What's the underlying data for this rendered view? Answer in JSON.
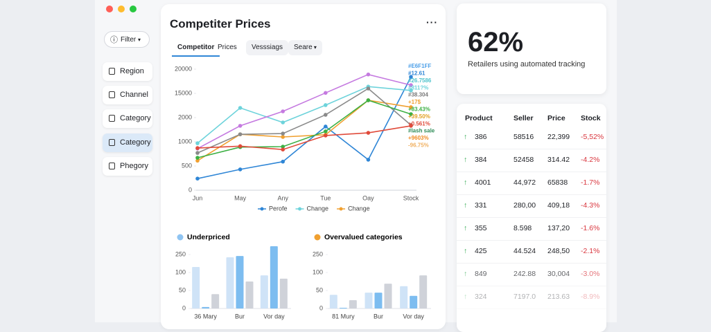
{
  "sidebar": {
    "filter": "Filter",
    "items": [
      "Region",
      "Channel",
      "Category",
      "Category",
      "Phegory"
    ],
    "active_item": 3
  },
  "main": {
    "title": "Competiter Prices",
    "tabs": [
      "Competitor",
      "Prices",
      "Vesssiags",
      "Seare"
    ],
    "active_tab": 0,
    "line_chart": {
      "type": "line",
      "categories": [
        "Jun",
        "May",
        "Any",
        "Tue",
        "Oay",
        "Stock"
      ],
      "ylim": [
        0,
        20000
      ],
      "yticks": [
        0,
        500,
        1000,
        2000,
        15000,
        20000
      ],
      "legend": "bottom",
      "series": [
        {
          "name": "Perofe",
          "color": "#2f86d6",
          "values": [
            240,
            430,
            590,
            1630,
            630,
            18400
          ]
        },
        {
          "name": "Change",
          "color": "#6dd3db",
          "values": [
            970,
            7200,
            1800,
            8700,
            16400,
            15600
          ]
        },
        {
          "name": "Change",
          "color": "#f0a030",
          "values": [
            610,
            1310,
            1200,
            1290,
            11300,
            7600
          ]
        },
        {
          "color": "#c57ae0",
          "values": [
            860,
            1660,
            5340,
            15100,
            18900,
            16700
          ]
        },
        {
          "color": "#8a8a8a",
          "values": [
            770,
            1310,
            1340,
            3500,
            16000,
            1690
          ]
        },
        {
          "color": "#3cb043",
          "values": [
            670,
            890,
            900,
            1430,
            11300,
            3860
          ]
        },
        {
          "color": "#e04a3a",
          "values": [
            870,
            910,
            840,
            1260,
            1370,
            1660
          ]
        }
      ],
      "annotations": [
        {
          "text": "#E6F1FF",
          "color": "#4a9ee8"
        },
        {
          "text": "#12.61",
          "color": "#2f86d6"
        },
        {
          "text": "#26.7586",
          "color": "#4fc3cc"
        },
        {
          "text": "#811?%",
          "color": "#6dd3db"
        },
        {
          "text": "#38.304",
          "color": "#7a7a7a"
        },
        {
          "text": "+17$",
          "color": "#f0a030"
        },
        {
          "text": "+83.43%",
          "color": "#3cb043"
        },
        {
          "text": "+39.50%",
          "color": "#e0a020"
        },
        {
          "text": "+0.561%",
          "color": "#e04a3a"
        },
        {
          "text": "#lash sale",
          "color": "#2e8b57"
        },
        {
          "text": "+9603%",
          "color": "#f08a20"
        },
        {
          "text": "-96.75%",
          "color": "#f0b060"
        }
      ]
    },
    "bar_charts": [
      {
        "type": "bar",
        "title": "Underpriced",
        "title_dot_color": "#8fc4f2",
        "categories": [
          "36 Mary",
          "Bur",
          "Vor day"
        ],
        "ylim": [
          0,
          400
        ],
        "yticks": [
          0,
          50,
          100,
          250
        ],
        "series": [
          {
            "color": "#cfe3f7",
            "values": [
              146,
              227,
              92
            ]
          },
          {
            "color": "#7dbdf0",
            "values": [
              4,
              238,
              319
            ]
          },
          {
            "color": "#cfd2d9",
            "values": [
              40,
              75,
              83
            ]
          }
        ]
      },
      {
        "type": "bar",
        "title": "Overvalued categories",
        "title_dot_color": "#f0a030",
        "categories": [
          "81 Mury",
          "Bur",
          "Vor day"
        ],
        "ylim": [
          0,
          400
        ],
        "yticks": [
          0,
          50,
          100,
          250
        ],
        "series": [
          {
            "color": "#cfe3f7",
            "values": [
              38,
              44,
              62
            ]
          },
          {
            "color": "#7dbdf0",
            "values": [
              2,
              44,
              35
            ]
          },
          {
            "color": "#cfd2d9",
            "values": [
              23,
              69,
              92
            ]
          }
        ]
      }
    ]
  },
  "kpi": {
    "value": "62%",
    "label": "Retailers using automated tracking"
  },
  "table": {
    "columns": [
      "Product",
      "Seller",
      "Price",
      "Stock"
    ],
    "rows": [
      [
        "386",
        "58516",
        "22,399",
        "-5,52%"
      ],
      [
        "384",
        "52458",
        "314.42",
        "-4.2%"
      ],
      [
        "4001",
        "44,972",
        "65838",
        "-1.7%"
      ],
      [
        "331",
        "280,00",
        "409,18",
        "-4.3%"
      ],
      [
        "355",
        "8.598",
        "137,20",
        "-1.6%"
      ],
      [
        "425",
        "44.524",
        "248,50",
        "-2.1%"
      ],
      [
        "849",
        "242.88",
        "30,004",
        "-3.0%"
      ],
      [
        "324",
        "7197.0",
        "213.63",
        "-8.9%"
      ]
    ]
  }
}
